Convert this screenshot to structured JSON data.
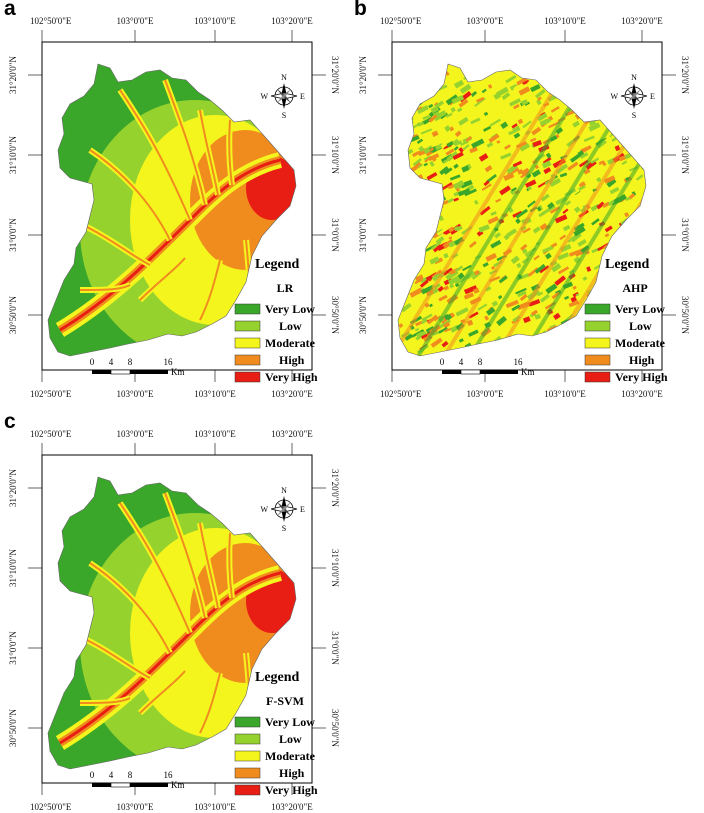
{
  "colors": {
    "very_low": "#3aa62a",
    "low": "#96d22d",
    "moderate": "#f5f51e",
    "high": "#f08c1e",
    "very_high": "#e81e14",
    "frame": "#000000"
  },
  "legend": {
    "title": "Legend",
    "classes": [
      "Very Low",
      "Low",
      "Moderate",
      "High",
      "Very High"
    ]
  },
  "compass": {
    "n": "N",
    "s": "S",
    "e": "E",
    "w": "W"
  },
  "scale": {
    "ticks": [
      "0",
      "4",
      "8",
      "16"
    ],
    "unit": "Km"
  },
  "coords": {
    "top": [
      "102°50'0\"E",
      "103°0'0\"E",
      "103°10'0\"E",
      "103°20'0\"E"
    ],
    "bottom": [
      "102°50'0\"E",
      "103°0'0\"E",
      "103°10'0\"E",
      "103°20'0\"E"
    ],
    "left": [
      "31°20'0\"N",
      "31°10'0\"N",
      "31°0'0\"N",
      "30°50'0\"N"
    ],
    "right": [
      "31°20'0\"N",
      "31°10'0\"N",
      "31°0'0\"N",
      "30°50'0\"N"
    ]
  },
  "panels": [
    {
      "letter": "a",
      "model": "LR"
    },
    {
      "letter": "b",
      "model": "AHP"
    },
    {
      "letter": "c",
      "model": "F-SVM"
    }
  ]
}
